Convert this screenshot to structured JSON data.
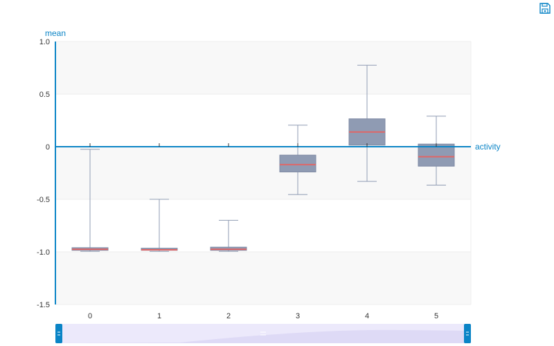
{
  "toolbar": {
    "save_icon": "save-as-image-icon"
  },
  "colors": {
    "box_fill": "#8f9bb3",
    "median": "#e06666",
    "whisker": "#8f9bb3",
    "axis": "#0a84c6",
    "band_odd": "#f8f8f8",
    "band_even": "#ffffff",
    "zoom_fill": "#ece9fb",
    "zoom_area": "#d8d3f3",
    "zoom_handle": "#0a84c6"
  },
  "chart_data": {
    "type": "boxplot",
    "xlabel": "activity",
    "ylabel": "mean",
    "categories": [
      "0",
      "1",
      "2",
      "3",
      "4",
      "5"
    ],
    "ylim": [
      -1.5,
      1.0
    ],
    "yticks": [
      1.0,
      0.5,
      0,
      -0.5,
      -1.0,
      -1.5
    ],
    "ytick_labels": [
      "1.0",
      "0.5",
      "0",
      "-0.5",
      "-1.0",
      "-1.5"
    ],
    "grid": true,
    "boxes": [
      {
        "category": "0",
        "min": -0.995,
        "q1": -0.985,
        "median": -0.975,
        "q3": -0.96,
        "max": -0.025
      },
      {
        "category": "1",
        "min": -0.995,
        "q1": -0.985,
        "median": -0.98,
        "q3": -0.965,
        "max": -0.5
      },
      {
        "category": "2",
        "min": -0.995,
        "q1": -0.985,
        "median": -0.975,
        "q3": -0.955,
        "max": -0.7
      },
      {
        "category": "3",
        "min": -0.455,
        "q1": -0.24,
        "median": -0.17,
        "q3": -0.08,
        "max": 0.205
      },
      {
        "category": "4",
        "min": -0.33,
        "q1": 0.015,
        "median": 0.14,
        "q3": 0.265,
        "max": 0.775
      },
      {
        "category": "5",
        "min": -0.365,
        "q1": -0.185,
        "median": -0.095,
        "q3": 0.025,
        "max": 0.29
      }
    ],
    "datazoom": {
      "start": 0,
      "end": 100
    }
  }
}
